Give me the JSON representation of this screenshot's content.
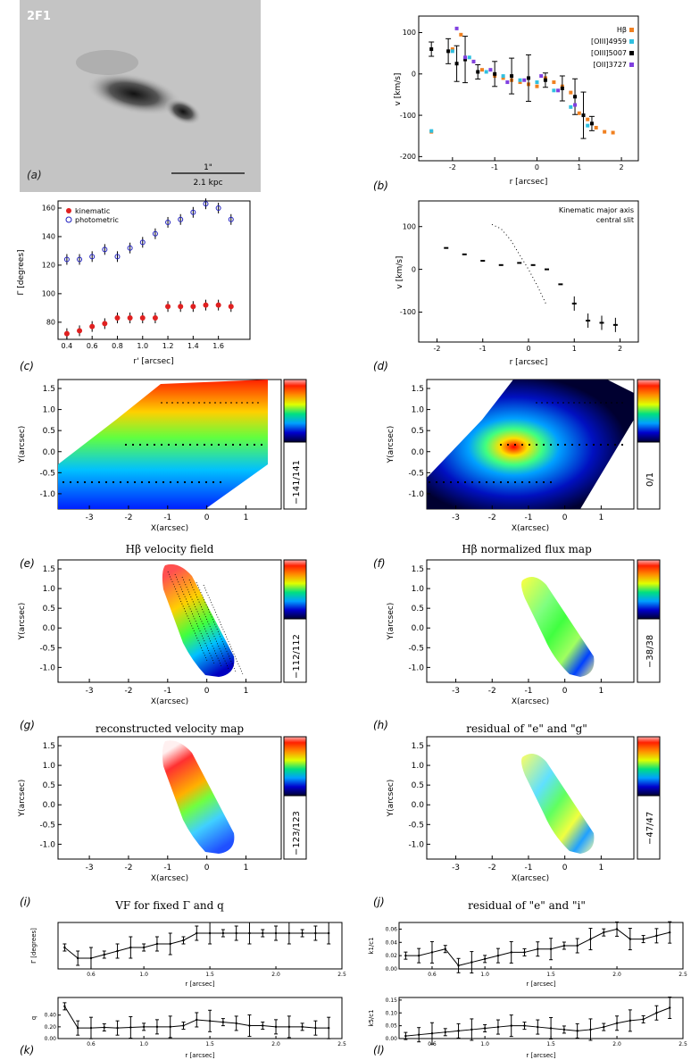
{
  "panel_a": {
    "id": "2F1",
    "tag": "(a)",
    "scale_top": "1\"",
    "scale_bottom": "2.1 kpc"
  },
  "panel_b": {
    "tag": "(b)",
    "xlabel": "r [arcsec]",
    "ylabel": "v [km/s]",
    "legend": [
      "Hβ",
      "[OIII]4959",
      "[OIII]5007",
      "[OII]3727"
    ]
  },
  "panel_c": {
    "tag": "(c)",
    "xlabel": "r' [arcsec]",
    "ylabel": "Γ [degrees]",
    "legend": [
      "kinematic",
      "photometric"
    ]
  },
  "panel_d": {
    "tag": "(d)",
    "xlabel": "r [arcsec]",
    "ylabel": "v [km/s]",
    "legend": [
      "Kinematic major axis",
      "central slit"
    ]
  },
  "maps": [
    {
      "tag": "(e)",
      "title": "Hβ velocity field",
      "scale": "−141/141",
      "xlabel": "X(arcsec)",
      "ylabel": "Y(arcsec)"
    },
    {
      "tag": "(f)",
      "title": "Hβ normalized flux map",
      "scale": "0/1",
      "xlabel": "X(arcsec)",
      "ylabel": "Y(arcsec)"
    },
    {
      "tag": "(g)",
      "title": "reconstructed velocity map",
      "scale": "−112/112",
      "xlabel": "X(arcsec)",
      "ylabel": "Y(arcsec)"
    },
    {
      "tag": "(h)",
      "title": "residual of \"e\" and \"g\"",
      "scale": "−38/38",
      "xlabel": "X(arcsec)",
      "ylabel": "Y(arcsec)"
    },
    {
      "tag": "(i)",
      "title": "VF for fixed Γ and q",
      "scale": "−123/123",
      "xlabel": "X(arcsec)",
      "ylabel": "Y(arcsec)"
    },
    {
      "tag": "(j)",
      "title": "residual of \"e\" and \"i\"",
      "scale": "−47/47",
      "xlabel": "X(arcsec)",
      "ylabel": "Y(arcsec)"
    }
  ],
  "strips": [
    {
      "tag": "(k)",
      "xlabel": "r [arcsec]",
      "ylabel": "Γ [degrees]"
    },
    {
      "tag": "(l)",
      "xlabel": "r [arcsec]",
      "ylabel": "k1/c1"
    },
    {
      "tag": "",
      "xlabel": "r [arcsec]",
      "ylabel": "q"
    },
    {
      "tag": "",
      "xlabel": "r [arcsec]",
      "ylabel": "k5/c1"
    }
  ],
  "chart_data": [
    {
      "type": "scatter",
      "panel": "b",
      "xlim": [
        -2.8,
        2.4
      ],
      "ylim": [
        -210,
        140
      ],
      "xticks": [
        -2,
        -1,
        0,
        1,
        2
      ],
      "yticks": [
        -200,
        -100,
        0,
        100
      ],
      "series": [
        {
          "name": "Hβ",
          "x": [
            -2.5,
            -2.0,
            -1.8,
            -1.5,
            -1.3,
            -1.0,
            -0.8,
            -0.6,
            -0.4,
            -0.2,
            0.0,
            0.2,
            0.4,
            0.6,
            0.8,
            1.0,
            1.2,
            1.4,
            1.6,
            1.8
          ],
          "y": [
            -140,
            60,
            95,
            30,
            10,
            -5,
            -10,
            -15,
            -20,
            -25,
            -30,
            -10,
            -20,
            -30,
            -45,
            -95,
            -110,
            -130,
            -140,
            -142
          ]
        },
        {
          "name": "[OIII]4959",
          "x": [
            -2.5,
            -2.0,
            -1.6,
            -1.2,
            -0.8,
            -0.4,
            0.0,
            0.4,
            0.8,
            1.2
          ],
          "y": [
            -138,
            55,
            40,
            5,
            -5,
            -15,
            -20,
            -40,
            -80,
            -125
          ]
        },
        {
          "name": "[OIII]5007",
          "x": [
            -2.5,
            -2.1,
            -1.9,
            -1.7,
            -1.4,
            -1.0,
            -0.6,
            -0.2,
            0.2,
            0.6,
            0.9,
            1.1,
            1.3
          ],
          "y": [
            60,
            55,
            25,
            35,
            5,
            0,
            -5,
            -10,
            -15,
            -35,
            -55,
            -100,
            -120
          ]
        },
        {
          "name": "[OII]3727",
          "x": [
            -1.9,
            -1.7,
            -1.5,
            -1.1,
            -0.7,
            -0.3,
            0.1,
            0.5,
            0.9
          ],
          "y": [
            110,
            40,
            30,
            10,
            -20,
            -15,
            -5,
            -40,
            -75
          ]
        }
      ]
    },
    {
      "type": "scatter",
      "panel": "c",
      "xlim": [
        0.33,
        1.85
      ],
      "ylim": [
        68,
        165
      ],
      "xticks": [
        0.4,
        0.6,
        0.8,
        1.0,
        1.2,
        1.4,
        1.6
      ],
      "yticks": [
        80,
        100,
        120,
        140,
        160
      ],
      "x": [
        0.4,
        0.5,
        0.6,
        0.7,
        0.8,
        0.9,
        1.0,
        1.1,
        1.2,
        1.3,
        1.4,
        1.5,
        1.6,
        1.7
      ],
      "series": [
        {
          "name": "kinematic",
          "values": [
            72,
            74,
            77,
            79,
            83,
            83,
            83,
            83,
            91,
            91,
            91,
            92,
            92,
            91
          ]
        },
        {
          "name": "photometric",
          "values": [
            124,
            124,
            126,
            131,
            126,
            132,
            136,
            142,
            150,
            152,
            157,
            163,
            160,
            152
          ]
        }
      ]
    },
    {
      "type": "scatter",
      "panel": "d",
      "xlim": [
        -2.4,
        2.4
      ],
      "ylim": [
        -170,
        160
      ],
      "xticks": [
        -2,
        -1,
        0,
        1,
        2
      ],
      "yticks": [
        -100,
        0,
        100
      ],
      "series": [
        {
          "name": "Kinematic major axis",
          "x": [
            -1.8,
            -1.4,
            -1.0,
            -0.6,
            -0.2,
            0.1,
            0.4,
            0.7,
            1.0,
            1.3,
            1.6,
            1.9
          ],
          "y": [
            50,
            35,
            20,
            10,
            15,
            10,
            0,
            -35,
            -80,
            -120,
            -125,
            -130
          ]
        },
        {
          "name": "central slit",
          "x": [
            -0.8,
            -0.6,
            -0.4,
            -0.2,
            0.0,
            0.2,
            0.4
          ],
          "y": [
            105,
            95,
            70,
            35,
            0,
            -40,
            -85
          ]
        }
      ]
    },
    {
      "type": "line",
      "panel": "k",
      "xlim": [
        0.35,
        2.5
      ],
      "xticks": [
        0.6,
        1.0,
        1.5,
        2.0,
        2.5
      ],
      "x": [
        0.4,
        0.5,
        0.6,
        0.7,
        0.8,
        0.9,
        1.0,
        1.1,
        1.2,
        1.3,
        1.4,
        1.5,
        1.6,
        1.7,
        1.8,
        1.9,
        2.0,
        2.1,
        2.2,
        2.3,
        2.4
      ],
      "values": [
        88,
        85,
        85,
        86,
        87,
        88,
        88,
        89,
        89,
        90,
        92,
        92,
        92,
        92,
        92,
        92,
        92,
        92,
        92,
        92,
        92
      ],
      "ylim": [
        82,
        95
      ]
    },
    {
      "type": "line",
      "panel": "l",
      "xlim": [
        0.35,
        2.5
      ],
      "xticks": [
        0.6,
        1.0,
        1.5,
        2.0,
        2.5
      ],
      "x": [
        0.4,
        0.5,
        0.6,
        0.7,
        0.8,
        0.9,
        1.0,
        1.1,
        1.2,
        1.3,
        1.4,
        1.5,
        1.6,
        1.7,
        1.8,
        1.9,
        2.0,
        2.1,
        2.2,
        2.3,
        2.4
      ],
      "values": [
        0.02,
        0.02,
        0.025,
        0.03,
        0.005,
        0.01,
        0.015,
        0.02,
        0.025,
        0.025,
        0.03,
        0.03,
        0.035,
        0.035,
        0.045,
        0.055,
        0.06,
        0.045,
        0.045,
        0.05,
        0.055
      ],
      "ylim": [
        0,
        0.07
      ],
      "yticks": [
        0.0,
        0.02,
        0.04,
        0.06
      ]
    },
    {
      "type": "line",
      "panel": "q",
      "xlim": [
        0.35,
        2.5
      ],
      "xticks": [
        0.6,
        1.0,
        1.5,
        2.0,
        2.5
      ],
      "x": [
        0.4,
        0.5,
        0.6,
        0.7,
        0.8,
        0.9,
        1.0,
        1.1,
        1.2,
        1.3,
        1.4,
        1.5,
        1.6,
        1.7,
        1.8,
        1.9,
        2.0,
        2.1,
        2.2,
        2.3,
        2.4
      ],
      "values": [
        0.55,
        0.18,
        0.18,
        0.19,
        0.18,
        0.19,
        0.2,
        0.2,
        0.2,
        0.22,
        0.32,
        0.3,
        0.28,
        0.26,
        0.22,
        0.22,
        0.2,
        0.2,
        0.2,
        0.18,
        0.18
      ],
      "ylim": [
        0,
        0.7
      ],
      "yticks": [
        0.0,
        0.2,
        0.4
      ]
    },
    {
      "type": "line",
      "panel": "k5",
      "xlim": [
        0.35,
        2.5
      ],
      "xticks": [
        0.6,
        1.0,
        1.5,
        2.0,
        2.5
      ],
      "x": [
        0.4,
        0.5,
        0.6,
        0.7,
        0.8,
        0.9,
        1.0,
        1.1,
        1.2,
        1.3,
        1.4,
        1.5,
        1.6,
        1.7,
        1.8,
        1.9,
        2.0,
        2.1,
        2.2,
        2.3,
        2.4
      ],
      "values": [
        0.01,
        0.015,
        0.02,
        0.025,
        0.03,
        0.035,
        0.04,
        0.045,
        0.05,
        0.05,
        0.045,
        0.04,
        0.035,
        0.03,
        0.035,
        0.045,
        0.06,
        0.07,
        0.075,
        0.1,
        0.12
      ],
      "ylim": [
        0,
        0.16
      ],
      "yticks": [
        0.0,
        0.05,
        0.1,
        0.15
      ]
    }
  ]
}
